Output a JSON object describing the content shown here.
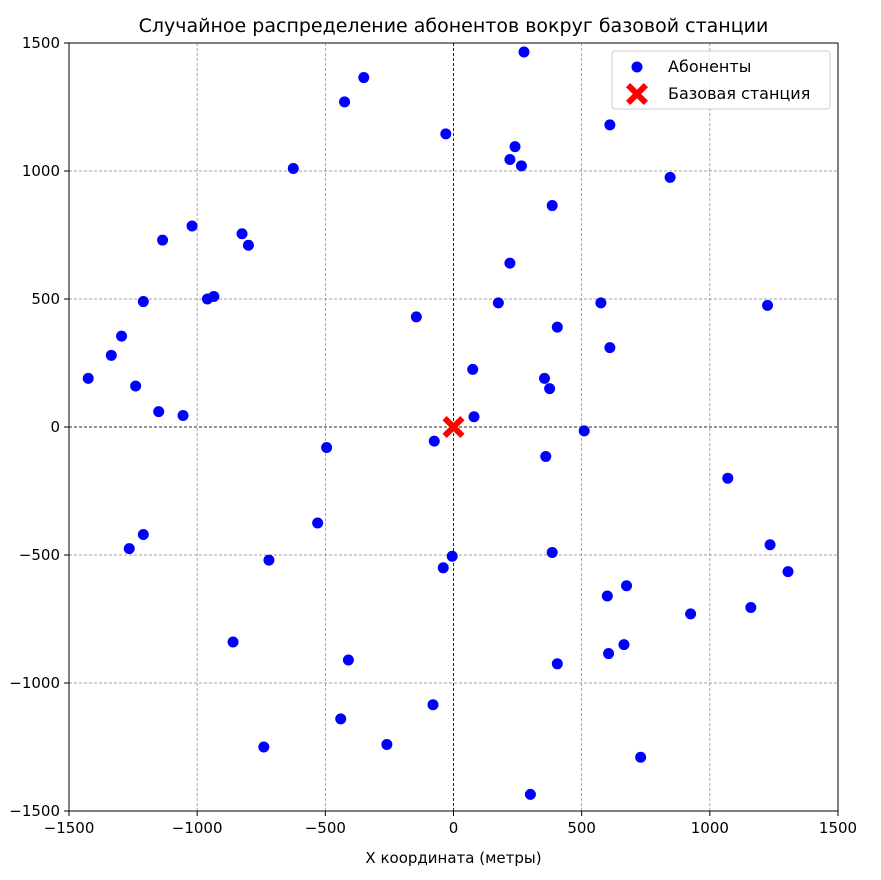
{
  "chart_data": {
    "type": "scatter",
    "title": "Случайное распределение абонентов вокруг базовой станции",
    "xlabel": "X координата (метры)",
    "ylabel": "",
    "xlim": [
      -1500,
      1500
    ],
    "ylim": [
      -1500,
      1500
    ],
    "xticks": [
      -1500,
      -1000,
      -500,
      0,
      500,
      1000,
      1500
    ],
    "yticks": [
      -1500,
      -1000,
      -500,
      0,
      500,
      1000,
      1500
    ],
    "xtick_labels": [
      "−1500",
      "−1000",
      "−500",
      "0",
      "500",
      "1000",
      "1500"
    ],
    "ytick_labels": [
      "−1500",
      "−1000",
      "−500",
      "0",
      "500",
      "1000",
      "1500"
    ],
    "grid": true,
    "legend_position": "top-right",
    "series": [
      {
        "name": "Абоненты",
        "marker": "circle",
        "color": "#0000ff",
        "points": [
          [
            275,
            1465
          ],
          [
            -350,
            1365
          ],
          [
            -425,
            1270
          ],
          [
            610,
            1180
          ],
          [
            -30,
            1145
          ],
          [
            240,
            1095
          ],
          [
            220,
            1045
          ],
          [
            265,
            1020
          ],
          [
            -625,
            1010
          ],
          [
            845,
            975
          ],
          [
            385,
            865
          ],
          [
            -1020,
            785
          ],
          [
            -825,
            755
          ],
          [
            -1135,
            730
          ],
          [
            -800,
            710
          ],
          [
            220,
            640
          ],
          [
            -1210,
            490
          ],
          [
            -960,
            500
          ],
          [
            -935,
            510
          ],
          [
            175,
            485
          ],
          [
            575,
            485
          ],
          [
            1225,
            475
          ],
          [
            -145,
            430
          ],
          [
            405,
            390
          ],
          [
            -1295,
            355
          ],
          [
            610,
            310
          ],
          [
            -1335,
            280
          ],
          [
            75,
            225
          ],
          [
            -1425,
            190
          ],
          [
            355,
            190
          ],
          [
            -1240,
            160
          ],
          [
            375,
            150
          ],
          [
            -1150,
            60
          ],
          [
            -1055,
            45
          ],
          [
            80,
            40
          ],
          [
            510,
            -15
          ],
          [
            -75,
            -55
          ],
          [
            -495,
            -80
          ],
          [
            360,
            -115
          ],
          [
            1070,
            -200
          ],
          [
            -530,
            -375
          ],
          [
            -1210,
            -420
          ],
          [
            1235,
            -460
          ],
          [
            -1265,
            -475
          ],
          [
            -5,
            -505
          ],
          [
            385,
            -490
          ],
          [
            -720,
            -520
          ],
          [
            -40,
            -550
          ],
          [
            1305,
            -565
          ],
          [
            675,
            -620
          ],
          [
            600,
            -660
          ],
          [
            925,
            -730
          ],
          [
            1160,
            -705
          ],
          [
            -860,
            -840
          ],
          [
            665,
            -850
          ],
          [
            605,
            -885
          ],
          [
            -410,
            -910
          ],
          [
            405,
            -925
          ],
          [
            -80,
            -1085
          ],
          [
            -440,
            -1140
          ],
          [
            -260,
            -1240
          ],
          [
            -740,
            -1250
          ],
          [
            730,
            -1290
          ],
          [
            300,
            -1435
          ]
        ]
      },
      {
        "name": "Базовая станция",
        "marker": "x",
        "color": "#ff0000",
        "points": [
          [
            0,
            0
          ]
        ]
      }
    ]
  }
}
